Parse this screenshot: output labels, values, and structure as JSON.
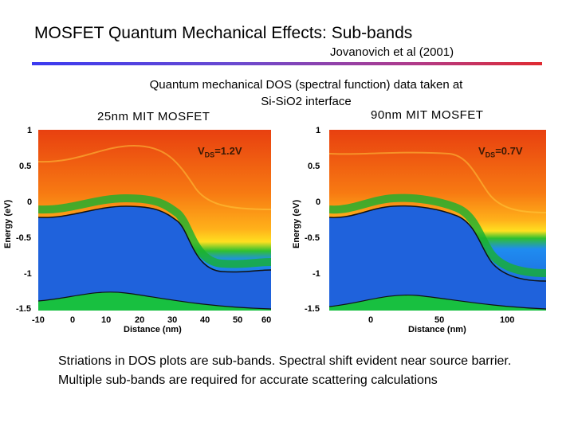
{
  "slide": {
    "title": "MOSFET Quantum Mechanical Effects: Sub-bands",
    "citation": "Jovanovich et al (2001)",
    "caption": "Quantum mechanical DOS (spectral function) data taken at Si-SiO2 interface",
    "footer": "Striations in DOS plots are sub-bands. Spectral shift evident near source barrier. Multiple sub-bands are required for accurate scattering calculations"
  },
  "panels": [
    {
      "title": "25nm MIT MOSFET",
      "vds_main": "V",
      "vds_sub": "DS",
      "vds_value": "=1.2V",
      "ylabel": "Energy (eV)",
      "xlabel": "Distance (nm)",
      "yticks": [
        "1",
        "0.5",
        "0",
        "-0.5",
        "-1",
        "-1.5"
      ],
      "xticks": [
        "-10",
        "0",
        "10",
        "20",
        "30",
        "40",
        "50",
        "60"
      ]
    },
    {
      "title": "90nm MIT MOSFET",
      "vds_main": "V",
      "vds_sub": "DS",
      "vds_value": "=0.7V",
      "ylabel": "Energy (eV)",
      "xlabel": "Distance (nm)",
      "yticks": [
        "1",
        "0.5",
        "0",
        "-0.5",
        "-1",
        "-1.5"
      ],
      "xticks": [
        "0",
        "50",
        "100"
      ]
    }
  ],
  "colors": {
    "rule_start": "#3a3af0",
    "rule_end": "#e02a30",
    "band_high": "#f05a10",
    "band_mid": "#ffb000",
    "band_low": "#1a5fd8"
  }
}
